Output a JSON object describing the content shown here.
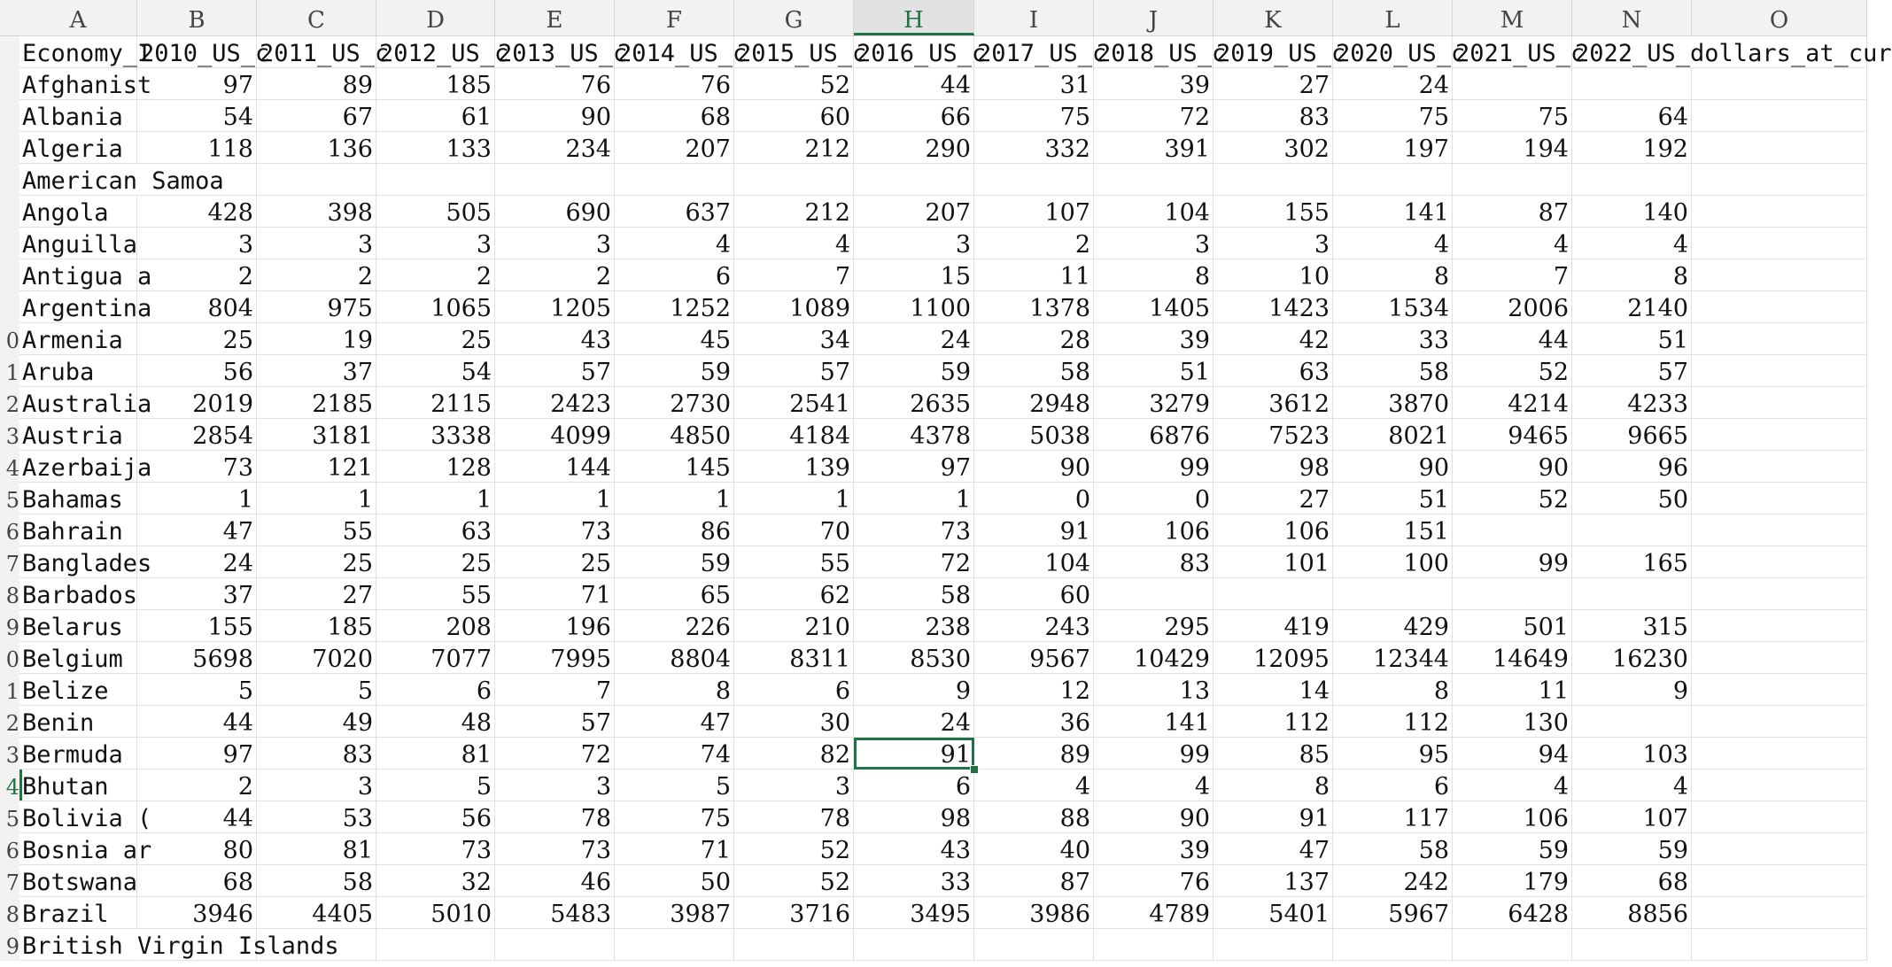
{
  "window": {
    "app": "Spreadsheet"
  },
  "column_letters": [
    "A",
    "B",
    "C",
    "D",
    "E",
    "F",
    "G",
    "H",
    "I",
    "J",
    "K",
    "L",
    "M",
    "N",
    "O"
  ],
  "active_column": "H",
  "active_row_index": 23,
  "selected_cell": {
    "row": 23,
    "column": "H",
    "value": "91"
  },
  "row_numbers": [
    "",
    "",
    "",
    "",
    "",
    "",
    "",
    "",
    "",
    "0",
    "1",
    "2",
    "3",
    "4",
    "5",
    "6",
    "7",
    "8",
    "9",
    "0",
    "1",
    "2",
    "3",
    "4",
    "5",
    "6",
    "7",
    "8",
    "9"
  ],
  "headers": [
    "Economy_I",
    "2010_US_c",
    "2011_US_c",
    "2012_US_c",
    "2013_US_c",
    "2014_US_c",
    "2015_US_c",
    "2016_US_c",
    "2017_US_c",
    "2018_US_c",
    "2019_US_c",
    "2020_US_c",
    "2021_US_c",
    "2022_US_dollars_at_cur",
    ""
  ],
  "rows": [
    {
      "name": "Afghanist",
      "values": [
        "97",
        "89",
        "185",
        "76",
        "76",
        "52",
        "44",
        "31",
        "39",
        "27",
        "24",
        "",
        ""
      ]
    },
    {
      "name": "Albania",
      "values": [
        "54",
        "67",
        "61",
        "90",
        "68",
        "60",
        "66",
        "75",
        "72",
        "83",
        "75",
        "75",
        "64"
      ]
    },
    {
      "name": "Algeria",
      "values": [
        "118",
        "136",
        "133",
        "234",
        "207",
        "212",
        "290",
        "332",
        "391",
        "302",
        "197",
        "194",
        "192"
      ]
    },
    {
      "name": "American Samoa",
      "values": [
        "",
        "",
        "",
        "",
        "",
        "",
        "",
        "",
        "",
        "",
        "",
        "",
        ""
      ]
    },
    {
      "name": "Angola",
      "values": [
        "428",
        "398",
        "505",
        "690",
        "637",
        "212",
        "207",
        "107",
        "104",
        "155",
        "141",
        "87",
        "140"
      ]
    },
    {
      "name": "Anguilla",
      "values": [
        "3",
        "3",
        "3",
        "3",
        "4",
        "4",
        "3",
        "2",
        "3",
        "3",
        "4",
        "4",
        "4"
      ]
    },
    {
      "name": "Antigua a",
      "values": [
        "2",
        "2",
        "2",
        "2",
        "6",
        "7",
        "15",
        "11",
        "8",
        "10",
        "8",
        "7",
        "8"
      ]
    },
    {
      "name": "Argentina",
      "values": [
        "804",
        "975",
        "1065",
        "1205",
        "1252",
        "1089",
        "1100",
        "1378",
        "1405",
        "1423",
        "1534",
        "2006",
        "2140"
      ]
    },
    {
      "name": "Armenia",
      "values": [
        "25",
        "19",
        "25",
        "43",
        "45",
        "34",
        "24",
        "28",
        "39",
        "42",
        "33",
        "44",
        "51"
      ]
    },
    {
      "name": "Aruba",
      "values": [
        "56",
        "37",
        "54",
        "57",
        "59",
        "57",
        "59",
        "58",
        "51",
        "63",
        "58",
        "52",
        "57"
      ]
    },
    {
      "name": "Australia",
      "values": [
        "2019",
        "2185",
        "2115",
        "2423",
        "2730",
        "2541",
        "2635",
        "2948",
        "3279",
        "3612",
        "3870",
        "4214",
        "4233"
      ]
    },
    {
      "name": "Austria",
      "values": [
        "2854",
        "3181",
        "3338",
        "4099",
        "4850",
        "4184",
        "4378",
        "5038",
        "6876",
        "7523",
        "8021",
        "9465",
        "9665"
      ]
    },
    {
      "name": "Azerbaija",
      "values": [
        "73",
        "121",
        "128",
        "144",
        "145",
        "139",
        "97",
        "90",
        "99",
        "98",
        "90",
        "90",
        "96"
      ]
    },
    {
      "name": "Bahamas",
      "values": [
        "1",
        "1",
        "1",
        "1",
        "1",
        "1",
        "1",
        "0",
        "0",
        "27",
        "51",
        "52",
        "50"
      ]
    },
    {
      "name": "Bahrain",
      "values": [
        "47",
        "55",
        "63",
        "73",
        "86",
        "70",
        "73",
        "91",
        "106",
        "106",
        "151",
        "",
        ""
      ]
    },
    {
      "name": "Banglades",
      "values": [
        "24",
        "25",
        "25",
        "25",
        "59",
        "55",
        "72",
        "104",
        "83",
        "101",
        "100",
        "99",
        "165"
      ]
    },
    {
      "name": "Barbados",
      "values": [
        "37",
        "27",
        "55",
        "71",
        "65",
        "62",
        "58",
        "60",
        "",
        "",
        "",
        "",
        ""
      ]
    },
    {
      "name": "Belarus",
      "values": [
        "155",
        "185",
        "208",
        "196",
        "226",
        "210",
        "238",
        "243",
        "295",
        "419",
        "429",
        "501",
        "315"
      ]
    },
    {
      "name": "Belgium",
      "values": [
        "5698",
        "7020",
        "7077",
        "7995",
        "8804",
        "8311",
        "8530",
        "9567",
        "10429",
        "12095",
        "12344",
        "14649",
        "16230"
      ]
    },
    {
      "name": "Belize",
      "values": [
        "5",
        "5",
        "6",
        "7",
        "8",
        "6",
        "9",
        "12",
        "13",
        "14",
        "8",
        "11",
        "9"
      ]
    },
    {
      "name": "Benin",
      "values": [
        "44",
        "49",
        "48",
        "57",
        "47",
        "30",
        "24",
        "36",
        "141",
        "112",
        "112",
        "130",
        ""
      ]
    },
    {
      "name": "Bermuda",
      "values": [
        "97",
        "83",
        "81",
        "72",
        "74",
        "82",
        "91",
        "89",
        "99",
        "85",
        "95",
        "94",
        "103"
      ]
    },
    {
      "name": "Bhutan",
      "values": [
        "2",
        "3",
        "5",
        "3",
        "5",
        "3",
        "6",
        "4",
        "4",
        "8",
        "6",
        "4",
        "4"
      ]
    },
    {
      "name": "Bolivia (",
      "values": [
        "44",
        "53",
        "56",
        "78",
        "75",
        "78",
        "98",
        "88",
        "90",
        "91",
        "117",
        "106",
        "107"
      ]
    },
    {
      "name": "Bosnia ar",
      "values": [
        "80",
        "81",
        "73",
        "73",
        "71",
        "52",
        "43",
        "40",
        "39",
        "47",
        "58",
        "59",
        "59"
      ]
    },
    {
      "name": "Botswana",
      "values": [
        "68",
        "58",
        "32",
        "46",
        "50",
        "52",
        "33",
        "87",
        "76",
        "137",
        "242",
        "179",
        "68"
      ]
    },
    {
      "name": "Brazil",
      "values": [
        "3946",
        "4405",
        "5010",
        "5483",
        "3987",
        "3716",
        "3495",
        "3986",
        "4789",
        "5401",
        "5967",
        "6428",
        "8856"
      ]
    },
    {
      "name": "British Virgin Islands",
      "values": [
        "",
        "",
        "",
        "",
        "",
        "",
        "",
        "",
        "",
        "",
        "",
        "",
        ""
      ]
    }
  ]
}
